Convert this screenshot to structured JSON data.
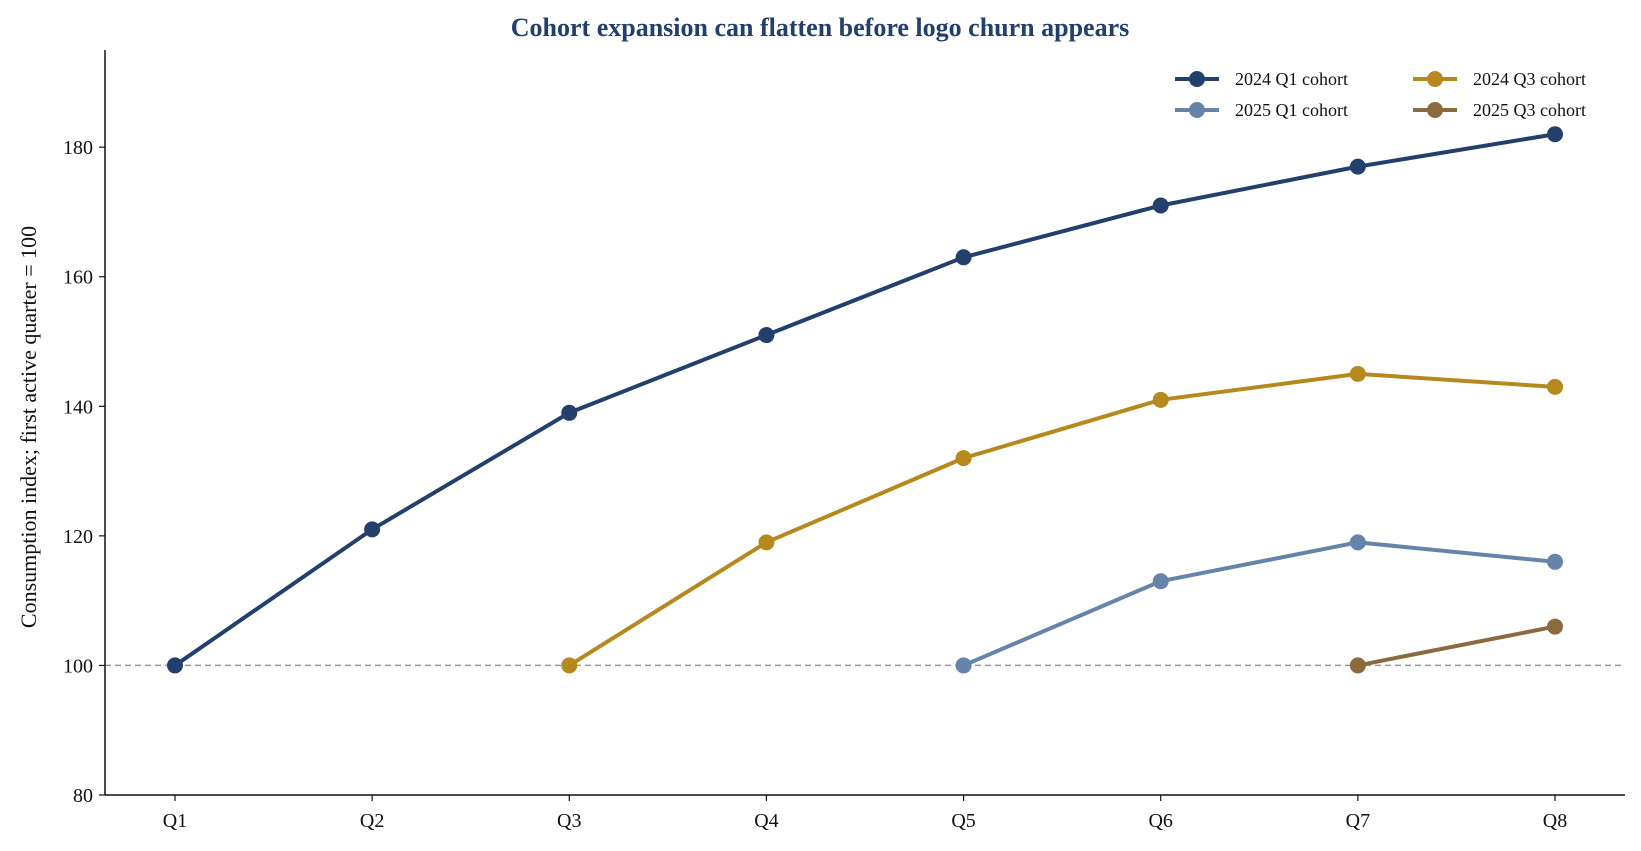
{
  "chart_data": {
    "type": "line",
    "title": "Cohort expansion can flatten before logo churn appears",
    "xlabel": "",
    "ylabel": "Consumption index; first active quarter = 100",
    "categories": [
      "Q1",
      "Q2",
      "Q3",
      "Q4",
      "Q5",
      "Q6",
      "Q7",
      "Q8"
    ],
    "ylim": [
      80,
      195
    ],
    "yticks": [
      80,
      100,
      120,
      140,
      160,
      180
    ],
    "reference_line": {
      "y": 100,
      "style": "dashed",
      "color": "#999999"
    },
    "grid": false,
    "legend_position": "top-right",
    "series": [
      {
        "name": "2024 Q1 cohort",
        "color": "#22406b",
        "values": [
          100,
          121,
          139,
          151,
          163,
          171,
          177,
          182
        ]
      },
      {
        "name": "2024 Q3 cohort",
        "color": "#b5891d",
        "values": [
          null,
          null,
          100,
          119,
          132,
          141,
          145,
          143
        ]
      },
      {
        "name": "2025 Q1 cohort",
        "color": "#6683aa",
        "values": [
          null,
          null,
          null,
          null,
          100,
          113,
          119,
          116
        ]
      },
      {
        "name": "2025 Q3 cohort",
        "color": "#8b6a3e",
        "values": [
          null,
          null,
          null,
          null,
          null,
          null,
          100,
          106
        ]
      }
    ],
    "title_color": "#22406b"
  }
}
